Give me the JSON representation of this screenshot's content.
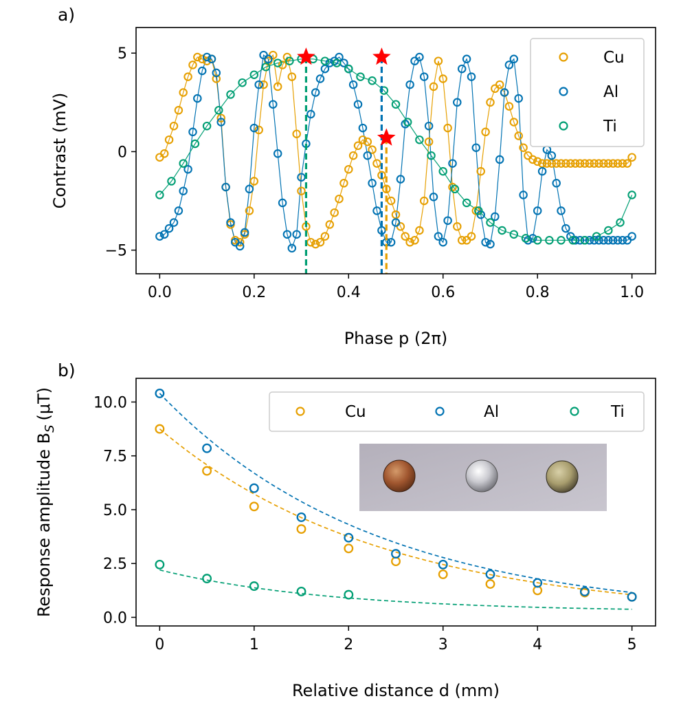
{
  "colors": {
    "Cu": "#e69f00",
    "Al": "#0072b2",
    "Ti": "#009e73",
    "marker": "#ff0000"
  },
  "chart_data": [
    {
      "type": "line",
      "panel_label": "a)",
      "xlabel": "Phase p (2π)",
      "ylabel": "Contrast (mV)",
      "xlim": [
        -0.05,
        1.05
      ],
      "ylim": [
        -6.2,
        6.3
      ],
      "xticks": [
        0.0,
        0.2,
        0.4,
        0.6,
        0.8,
        1.0
      ],
      "xtick_labels": [
        "0.0",
        "0.2",
        "0.4",
        "0.6",
        "0.8",
        "1.0"
      ],
      "yticks": [
        -5,
        0,
        5
      ],
      "ytick_labels": [
        "−5",
        "0",
        "5"
      ],
      "legend": {
        "position": "top-right",
        "entries": [
          "Cu",
          "Al",
          "Ti"
        ]
      },
      "series": [
        {
          "name": "Cu",
          "x": [
            0.0,
            0.01,
            0.02,
            0.03,
            0.04,
            0.05,
            0.06,
            0.07,
            0.08,
            0.09,
            0.1,
            0.11,
            0.12,
            0.13,
            0.14,
            0.15,
            0.16,
            0.17,
            0.18,
            0.19,
            0.2,
            0.21,
            0.22,
            0.23,
            0.24,
            0.25,
            0.26,
            0.27,
            0.28,
            0.29,
            0.3,
            0.31,
            0.32,
            0.33,
            0.34,
            0.35,
            0.36,
            0.37,
            0.38,
            0.39,
            0.4,
            0.41,
            0.42,
            0.43,
            0.44,
            0.45,
            0.46,
            0.47,
            0.48,
            0.49,
            0.5,
            0.51,
            0.52,
            0.53,
            0.54,
            0.55,
            0.56,
            0.57,
            0.58,
            0.59,
            0.6,
            0.61,
            0.62,
            0.63,
            0.64,
            0.65,
            0.66,
            0.67,
            0.68,
            0.69,
            0.7,
            0.71,
            0.72,
            0.73,
            0.74,
            0.75,
            0.76,
            0.77,
            0.78,
            0.79,
            0.8,
            0.81,
            0.82,
            0.83,
            0.84,
            0.85,
            0.86,
            0.87,
            0.88,
            0.89,
            0.9,
            0.91,
            0.92,
            0.93,
            0.94,
            0.95,
            0.96,
            0.97,
            0.98,
            0.99,
            1.0
          ],
          "y": [
            -0.29,
            -0.1,
            0.6,
            1.3,
            2.1,
            3.0,
            3.8,
            4.4,
            4.8,
            4.7,
            4.6,
            4.7,
            3.7,
            1.7,
            -1.8,
            -3.7,
            -4.5,
            -4.6,
            -4.2,
            -3.0,
            -1.5,
            1.1,
            3.4,
            4.6,
            4.9,
            3.3,
            4.4,
            4.8,
            3.8,
            0.9,
            -2.0,
            -3.8,
            -4.6,
            -4.7,
            -4.6,
            -4.3,
            -3.7,
            -3.1,
            -2.4,
            -1.6,
            -0.9,
            -0.2,
            0.3,
            0.6,
            0.5,
            0.1,
            -0.6,
            -1.2,
            -1.9,
            -2.5,
            -3.2,
            -3.8,
            -4.3,
            -4.6,
            -4.5,
            -4.0,
            -2.5,
            0.5,
            3.3,
            4.6,
            3.7,
            1.2,
            -1.8,
            -3.8,
            -4.5,
            -4.5,
            -4.3,
            -3.0,
            -1.0,
            1.0,
            2.5,
            3.2,
            3.4,
            3.0,
            2.3,
            1.5,
            0.8,
            0.2,
            -0.2,
            -0.4,
            -0.5,
            -0.6,
            -0.6,
            -0.6,
            -0.6,
            -0.6,
            -0.6,
            -0.6,
            -0.6,
            -0.6,
            -0.6,
            -0.6,
            -0.6,
            -0.6,
            -0.6,
            -0.6,
            -0.6,
            -0.6,
            -0.6,
            -0.6,
            -0.29
          ]
        },
        {
          "name": "Al",
          "x": [
            0.0,
            0.01,
            0.02,
            0.03,
            0.04,
            0.05,
            0.06,
            0.07,
            0.08,
            0.09,
            0.1,
            0.11,
            0.12,
            0.13,
            0.14,
            0.15,
            0.16,
            0.17,
            0.18,
            0.19,
            0.2,
            0.21,
            0.22,
            0.23,
            0.24,
            0.25,
            0.26,
            0.27,
            0.28,
            0.29,
            0.3,
            0.31,
            0.32,
            0.33,
            0.34,
            0.35,
            0.36,
            0.37,
            0.38,
            0.39,
            0.4,
            0.41,
            0.42,
            0.43,
            0.44,
            0.45,
            0.46,
            0.47,
            0.48,
            0.49,
            0.5,
            0.51,
            0.52,
            0.53,
            0.54,
            0.55,
            0.56,
            0.57,
            0.58,
            0.59,
            0.6,
            0.61,
            0.62,
            0.63,
            0.64,
            0.65,
            0.66,
            0.67,
            0.68,
            0.69,
            0.7,
            0.71,
            0.72,
            0.73,
            0.74,
            0.75,
            0.76,
            0.77,
            0.78,
            0.79,
            0.8,
            0.81,
            0.82,
            0.83,
            0.84,
            0.85,
            0.86,
            0.87,
            0.88,
            0.89,
            0.9,
            0.91,
            0.92,
            0.93,
            0.94,
            0.95,
            0.96,
            0.97,
            0.98,
            0.99,
            1.0
          ],
          "y": [
            -4.3,
            -4.2,
            -3.9,
            -3.6,
            -3.0,
            -2.0,
            -0.9,
            1.0,
            2.7,
            4.1,
            4.8,
            4.7,
            4.0,
            1.5,
            -1.8,
            -3.6,
            -4.6,
            -4.8,
            -4.1,
            -1.9,
            1.2,
            3.4,
            4.9,
            4.7,
            2.4,
            -0.1,
            -2.6,
            -4.2,
            -4.9,
            -4.2,
            -1.3,
            0.4,
            1.9,
            3.0,
            3.7,
            4.2,
            4.5,
            4.6,
            4.8,
            4.5,
            4.2,
            3.4,
            2.4,
            1.2,
            -0.2,
            -1.6,
            -3.0,
            -4.0,
            -4.6,
            -4.6,
            -3.6,
            -1.4,
            1.4,
            3.4,
            4.6,
            4.8,
            3.8,
            1.3,
            -2.3,
            -4.3,
            -4.6,
            -3.5,
            -0.6,
            2.5,
            4.2,
            4.7,
            3.8,
            0.2,
            -3.2,
            -4.6,
            -4.7,
            -3.3,
            -0.4,
            3.0,
            4.4,
            4.7,
            2.7,
            -2.2,
            -4.5,
            -4.4,
            -3.0,
            -1.0,
            0.1,
            -0.2,
            -1.6,
            -3.0,
            -3.9,
            -4.3,
            -4.5,
            -4.5,
            -4.5,
            -4.5,
            -4.5,
            -4.5,
            -4.5,
            -4.5,
            -4.5,
            -4.5,
            -4.5,
            -4.5,
            -4.3
          ]
        },
        {
          "name": "Ti",
          "x": [
            0.0,
            0.025,
            0.05,
            0.075,
            0.1,
            0.125,
            0.15,
            0.175,
            0.2,
            0.225,
            0.25,
            0.275,
            0.3,
            0.325,
            0.35,
            0.375,
            0.4,
            0.425,
            0.45,
            0.475,
            0.5,
            0.525,
            0.55,
            0.575,
            0.6,
            0.625,
            0.65,
            0.675,
            0.7,
            0.725,
            0.75,
            0.775,
            0.8,
            0.825,
            0.85,
            0.875,
            0.9,
            0.925,
            0.95,
            0.975,
            1.0
          ],
          "y": [
            -2.2,
            -1.5,
            -0.6,
            0.4,
            1.3,
            2.1,
            2.9,
            3.5,
            3.9,
            4.3,
            4.5,
            4.6,
            4.7,
            4.7,
            4.6,
            4.5,
            4.2,
            3.8,
            3.6,
            3.1,
            2.4,
            1.5,
            0.6,
            -0.2,
            -1.0,
            -1.9,
            -2.6,
            -3.0,
            -3.6,
            -4.0,
            -4.2,
            -4.4,
            -4.5,
            -4.5,
            -4.5,
            -4.5,
            -4.5,
            -4.3,
            -4.0,
            -3.6,
            -2.2
          ]
        }
      ],
      "markers": [
        {
          "series": "Ti",
          "x": 0.31,
          "y": 4.8
        },
        {
          "series": "Al",
          "x": 0.47,
          "y": 4.8
        },
        {
          "series": "Cu",
          "x": 0.48,
          "y": 0.7
        }
      ]
    },
    {
      "type": "scatter",
      "panel_label": "b)",
      "xlabel": "Relative distance d (mm)",
      "ylabel": "Response amplitude B",
      "ylabel_sub": "S",
      "ylabel_unit": "(μT)",
      "xlim": [
        -0.25,
        5.25
      ],
      "ylim": [
        -0.4,
        11.1
      ],
      "xticks": [
        0,
        1,
        2,
        3,
        4,
        5
      ],
      "xtick_labels": [
        "0",
        "1",
        "2",
        "3",
        "4",
        "5"
      ],
      "yticks": [
        0.0,
        2.5,
        5.0,
        7.5,
        10.0
      ],
      "ytick_labels": [
        "0.0",
        "2.5",
        "5.0",
        "7.5",
        "10.0"
      ],
      "legend": {
        "position": "top-right",
        "entries": [
          "Cu",
          "Al",
          "Ti"
        ]
      },
      "series": [
        {
          "name": "Cu",
          "x": [
            0,
            0.5,
            1,
            1.5,
            2,
            2.5,
            3,
            3.5,
            4,
            4.5,
            5
          ],
          "y": [
            8.75,
            6.8,
            5.15,
            4.1,
            3.2,
            2.6,
            2.0,
            1.55,
            1.25,
            1.15,
            0.95
          ]
        },
        {
          "name": "Al",
          "x": [
            0,
            0.5,
            1,
            1.5,
            2,
            2.5,
            3,
            3.5,
            4,
            4.5,
            5
          ],
          "y": [
            10.4,
            7.85,
            6.0,
            4.65,
            3.7,
            2.95,
            2.45,
            2.0,
            1.6,
            1.2,
            0.95
          ]
        },
        {
          "name": "Ti",
          "x": [
            0,
            0.5,
            1,
            1.5,
            2
          ],
          "y": [
            2.45,
            1.8,
            1.45,
            1.2,
            1.05
          ]
        }
      ],
      "fits": [
        {
          "name": "Cu",
          "a": 8.75,
          "k": 0.424,
          "c": 0
        },
        {
          "name": "Al",
          "a": 10.4,
          "k": 0.44,
          "c": 0
        },
        {
          "name": "Ti",
          "a": 2.2,
          "k": 0.55,
          "c": 0.25
        }
      ]
    }
  ]
}
